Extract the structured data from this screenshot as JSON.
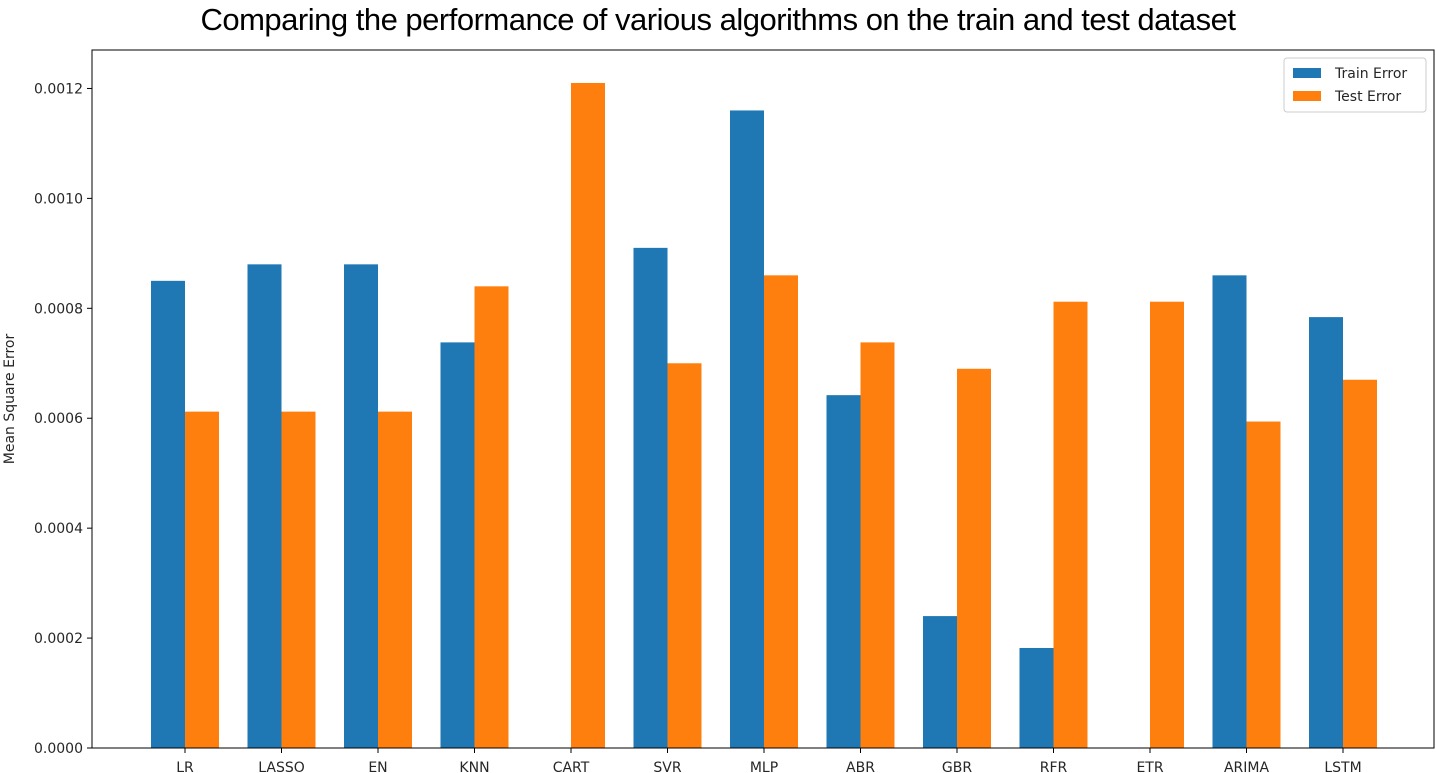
{
  "chart_data": {
    "type": "bar",
    "title": "Comparing the performance of various algorithms on the train and test dataset",
    "xlabel": "",
    "ylabel": "Mean Square Error",
    "categories": [
      "LR",
      "LASSO",
      "EN",
      "KNN",
      "CART",
      "SVR",
      "MLP",
      "ABR",
      "GBR",
      "RFR",
      "ETR",
      "ARIMA",
      "LSTM"
    ],
    "series": [
      {
        "name": "Train Error",
        "color": "#1f77b4",
        "values": [
          0.00085,
          0.00088,
          0.00088,
          0.000738,
          0.0,
          0.00091,
          0.00116,
          0.000642,
          0.00024,
          0.000182,
          0.0,
          0.00086,
          0.000784
        ]
      },
      {
        "name": "Test Error",
        "color": "#ff7f0e",
        "values": [
          0.000612,
          0.000612,
          0.000612,
          0.00084,
          0.00121,
          0.0007,
          0.00086,
          0.000738,
          0.00069,
          0.000812,
          0.000812,
          0.000594,
          0.00067
        ]
      }
    ],
    "yticks": [
      "0.0000",
      "0.0002",
      "0.0004",
      "0.0006",
      "0.0008",
      "0.0010",
      "0.0012"
    ],
    "ylim": [
      0,
      0.00127
    ],
    "grid": false,
    "legend_position": "top-right"
  }
}
